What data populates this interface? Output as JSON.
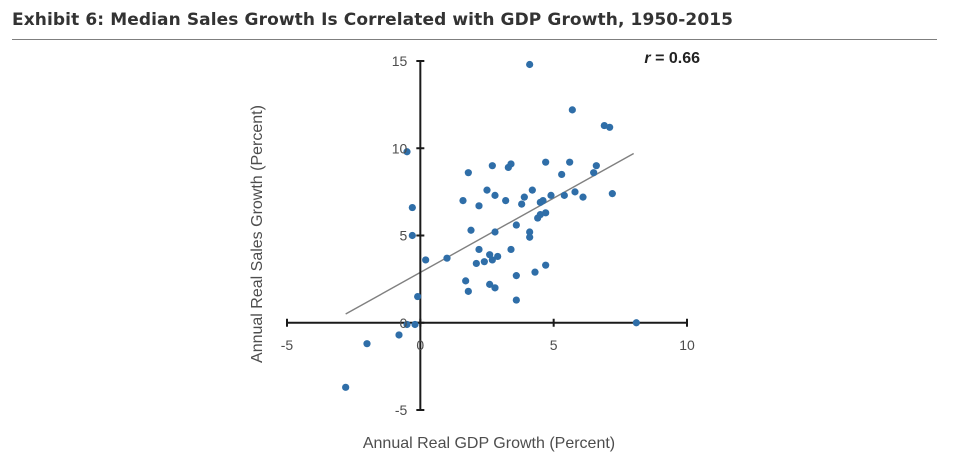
{
  "exhibit_title": "Exhibit 6: Median Sales Growth Is Correlated with GDP Growth, 1950-2015",
  "chart_data": {
    "type": "scatter",
    "title": "Exhibit 6: Median Sales Growth Is Correlated with GDP Growth, 1950-2015",
    "xlabel": "Annual Real GDP Growth (Percent)",
    "ylabel": "Annual Real Sales Growth (Percent)",
    "xlim": [
      -5,
      10
    ],
    "ylim": [
      -5,
      15
    ],
    "x_ticks": [
      -5,
      0,
      5,
      10
    ],
    "y_ticks": [
      -5,
      0,
      5,
      10,
      15
    ],
    "x_tick_labels": [
      "-5",
      "0",
      "5",
      "10"
    ],
    "y_tick_labels": [
      "-5",
      "0",
      "5",
      "10",
      "15"
    ],
    "grid": false,
    "annotation": {
      "prefix": "r",
      "text": " = 0.66",
      "placement": "top-right"
    },
    "marker_color": "#2f6ea8",
    "trendline_color": "#808080",
    "axis_color": "#1a1a1a",
    "trendline": {
      "x": [
        -2.8,
        8.0
      ],
      "y": [
        0.5,
        9.7
      ]
    },
    "points": [
      {
        "x": -2.8,
        "y": -3.7
      },
      {
        "x": -2.0,
        "y": -1.2
      },
      {
        "x": -0.8,
        "y": -0.7
      },
      {
        "x": -0.5,
        "y": -0.1
      },
      {
        "x": -0.2,
        "y": -0.1
      },
      {
        "x": -0.1,
        "y": 1.5
      },
      {
        "x": -0.5,
        "y": 9.8
      },
      {
        "x": -0.3,
        "y": 6.6
      },
      {
        "x": -0.3,
        "y": 5.0
      },
      {
        "x": 0.2,
        "y": 3.6
      },
      {
        "x": 1.0,
        "y": 3.7
      },
      {
        "x": 1.6,
        "y": 7.0
      },
      {
        "x": 1.8,
        "y": 8.6
      },
      {
        "x": 1.7,
        "y": 2.4
      },
      {
        "x": 1.8,
        "y": 1.8
      },
      {
        "x": 1.9,
        "y": 5.3
      },
      {
        "x": 2.1,
        "y": 3.4
      },
      {
        "x": 2.2,
        "y": 4.2
      },
      {
        "x": 2.2,
        "y": 6.7
      },
      {
        "x": 2.4,
        "y": 3.5
      },
      {
        "x": 2.5,
        "y": 7.6
      },
      {
        "x": 2.6,
        "y": 3.9
      },
      {
        "x": 2.6,
        "y": 2.2
      },
      {
        "x": 2.7,
        "y": 9.0
      },
      {
        "x": 2.7,
        "y": 3.6
      },
      {
        "x": 2.8,
        "y": 5.2
      },
      {
        "x": 2.8,
        "y": 7.3
      },
      {
        "x": 2.8,
        "y": 2.0
      },
      {
        "x": 2.9,
        "y": 3.8
      },
      {
        "x": 3.2,
        "y": 7.0
      },
      {
        "x": 3.3,
        "y": 8.9
      },
      {
        "x": 3.4,
        "y": 9.1
      },
      {
        "x": 3.4,
        "y": 4.2
      },
      {
        "x": 3.6,
        "y": 5.6
      },
      {
        "x": 3.6,
        "y": 2.7
      },
      {
        "x": 3.6,
        "y": 1.3
      },
      {
        "x": 3.8,
        "y": 6.8
      },
      {
        "x": 3.9,
        "y": 7.2
      },
      {
        "x": 4.1,
        "y": 14.8
      },
      {
        "x": 4.1,
        "y": 5.2
      },
      {
        "x": 4.1,
        "y": 4.9
      },
      {
        "x": 4.2,
        "y": 7.6
      },
      {
        "x": 4.3,
        "y": 2.9
      },
      {
        "x": 4.4,
        "y": 6.0
      },
      {
        "x": 4.5,
        "y": 6.2
      },
      {
        "x": 4.5,
        "y": 6.9
      },
      {
        "x": 4.6,
        "y": 7.0
      },
      {
        "x": 4.7,
        "y": 9.2
      },
      {
        "x": 4.7,
        "y": 6.3
      },
      {
        "x": 4.7,
        "y": 3.3
      },
      {
        "x": 4.9,
        "y": 7.3
      },
      {
        "x": 5.3,
        "y": 8.5
      },
      {
        "x": 5.4,
        "y": 7.3
      },
      {
        "x": 5.6,
        "y": 9.2
      },
      {
        "x": 5.7,
        "y": 12.2
      },
      {
        "x": 5.8,
        "y": 7.5
      },
      {
        "x": 6.1,
        "y": 7.2
      },
      {
        "x": 6.5,
        "y": 8.6
      },
      {
        "x": 6.6,
        "y": 9.0
      },
      {
        "x": 6.9,
        "y": 11.3
      },
      {
        "x": 7.1,
        "y": 11.2
      },
      {
        "x": 7.2,
        "y": 7.4
      },
      {
        "x": 8.1,
        "y": 0.0
      }
    ]
  }
}
